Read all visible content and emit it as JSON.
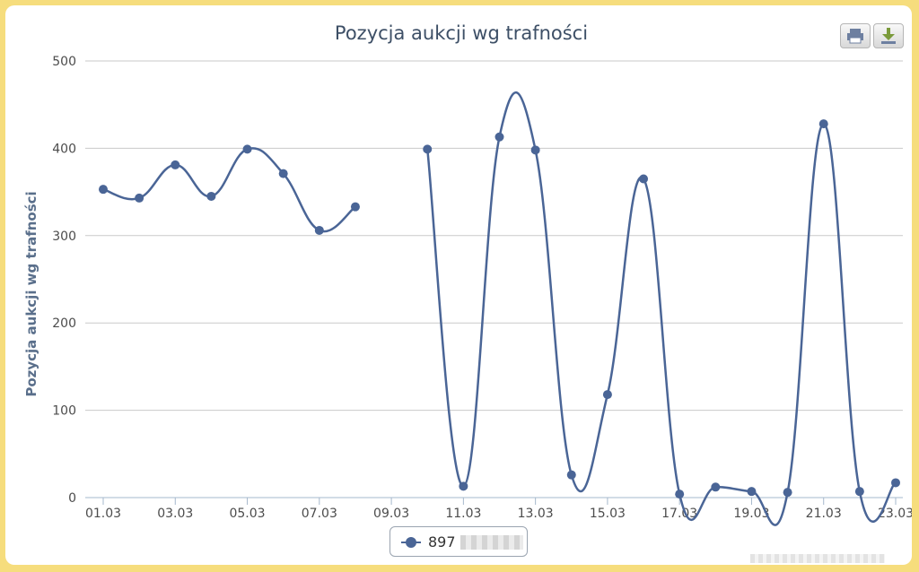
{
  "chart_data": {
    "type": "line",
    "title": "Pozycja aukcji wg trafności",
    "ylabel": "Pozycja aukcji wg trafności",
    "xlabel": "",
    "ylim": [
      0,
      500
    ],
    "yticks": [
      "0",
      "100",
      "200",
      "300",
      "400",
      "500"
    ],
    "categories": [
      "01.03",
      "02.03",
      "03.03",
      "04.03",
      "05.03",
      "06.03",
      "07.03",
      "08.03",
      "09.03",
      "10.03",
      "11.03",
      "12.03",
      "13.03",
      "14.03",
      "15.03",
      "16.03",
      "17.03",
      "18.03",
      "19.03",
      "20.03",
      "21.03",
      "22.03",
      "23.03"
    ],
    "xtick_labels": [
      "01.03",
      "03.03",
      "05.03",
      "07.03",
      "09.03",
      "11.03",
      "13.03",
      "15.03",
      "17.03",
      "19.03",
      "21.03",
      "23.03"
    ],
    "series": [
      {
        "name": "897",
        "color": "#4a6596",
        "values": [
          353,
          343,
          381,
          345,
          399,
          371,
          306,
          333,
          null,
          399,
          13,
          413,
          398,
          26,
          118,
          365,
          4,
          12,
          7,
          6,
          428,
          7,
          17
        ]
      }
    ],
    "grid": true,
    "legend": "bottom-center",
    "legend_label_prefix": "897"
  },
  "toolbar": {
    "print_icon": "printer-icon",
    "download_icon": "download-icon"
  }
}
